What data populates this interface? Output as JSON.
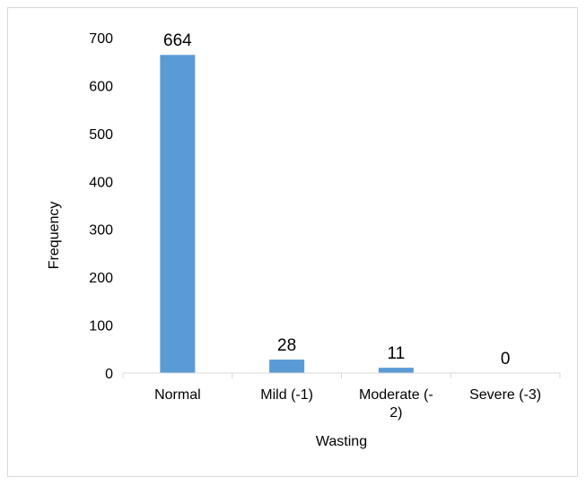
{
  "chart_data": {
    "type": "bar",
    "title": "",
    "xlabel": "Wasting",
    "ylabel": "Frequency",
    "categories": [
      "Normal",
      "Mild (-1)",
      "Moderate (-2)",
      "Severe (-3)"
    ],
    "category_lines": [
      [
        "Normal"
      ],
      [
        "Mild (-1)"
      ],
      [
        "Moderate (-",
        "2)"
      ],
      [
        "Severe (-3)"
      ]
    ],
    "values": [
      664,
      28,
      11,
      0
    ],
    "data_labels": [
      "664",
      "28",
      "11",
      "0"
    ],
    "ylim": [
      0,
      700
    ],
    "yticks": [
      0,
      100,
      200,
      300,
      400,
      500,
      600,
      700
    ],
    "ytick_labels": [
      "0",
      "100",
      "200",
      "300",
      "400",
      "500",
      "600",
      "700"
    ],
    "grid": false,
    "legend": "none",
    "bar_color": "#5b9bd5",
    "axis_color": "#d9d9d9"
  }
}
